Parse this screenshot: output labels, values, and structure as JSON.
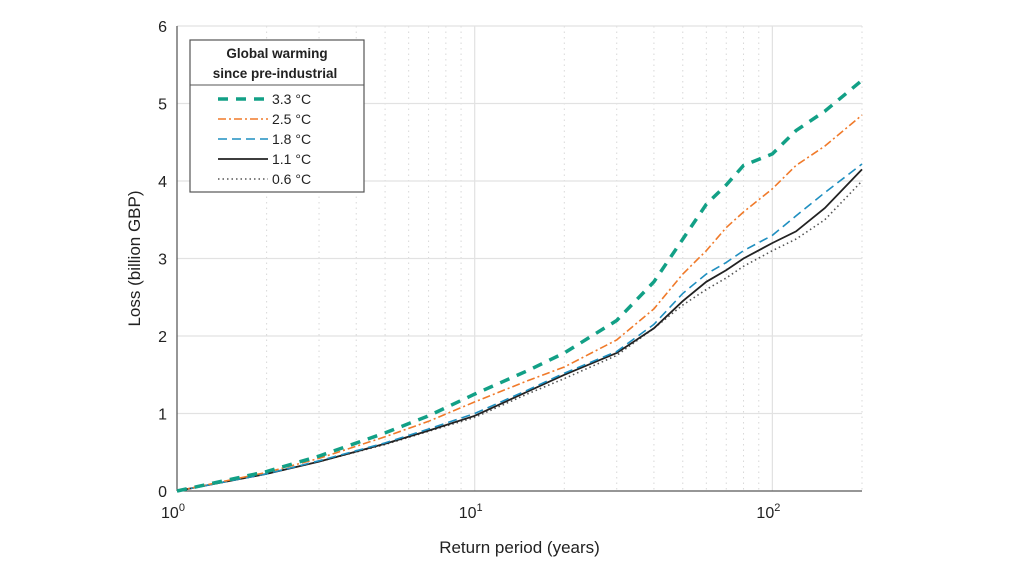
{
  "chart_data": {
    "type": "line",
    "xlabel": "Return period (years)",
    "ylabel": "Loss (billion GBP)",
    "xscale": "log",
    "xlim": [
      1,
      200
    ],
    "ylim": [
      0,
      6
    ],
    "xticks": [
      {
        "v": 1,
        "base": "10",
        "exp": "0"
      },
      {
        "v": 10,
        "base": "10",
        "exp": "1"
      },
      {
        "v": 100,
        "base": "10",
        "exp": "2"
      }
    ],
    "yticks": [
      "0",
      "1",
      "2",
      "3",
      "4",
      "5",
      "6"
    ],
    "grid": true,
    "legend": {
      "title_lines": [
        "Global warming",
        "since pre-industrial"
      ],
      "placement": "top-left"
    },
    "x": [
      1,
      2,
      3,
      5,
      7,
      10,
      15,
      20,
      30,
      40,
      50,
      60,
      70,
      80,
      100,
      120,
      150,
      200
    ],
    "series": [
      {
        "name": "3.3 °C",
        "color": "#12a086",
        "dash": "10,8",
        "width": 3.5,
        "values": [
          0,
          0.25,
          0.45,
          0.75,
          0.97,
          1.25,
          1.55,
          1.78,
          2.2,
          2.7,
          3.25,
          3.7,
          3.95,
          4.2,
          4.35,
          4.65,
          4.9,
          5.3
        ]
      },
      {
        "name": "2.5 °C",
        "color": "#f07a2a",
        "dash": "8,3,2,3",
        "width": 1.6,
        "values": [
          0,
          0.24,
          0.42,
          0.7,
          0.9,
          1.15,
          1.42,
          1.6,
          1.95,
          2.35,
          2.8,
          3.1,
          3.4,
          3.6,
          3.9,
          4.2,
          4.45,
          4.85
        ]
      },
      {
        "name": "1.8 °C",
        "color": "#1f8fc0",
        "dash": "9,5",
        "width": 1.6,
        "values": [
          0,
          0.22,
          0.39,
          0.62,
          0.8,
          1.0,
          1.3,
          1.52,
          1.8,
          2.15,
          2.55,
          2.8,
          2.95,
          3.1,
          3.3,
          3.55,
          3.85,
          4.22
        ]
      },
      {
        "name": "1.1 °C",
        "color": "#222222",
        "dash": "",
        "width": 1.8,
        "values": [
          0,
          0.22,
          0.38,
          0.61,
          0.78,
          0.97,
          1.28,
          1.5,
          1.78,
          2.1,
          2.45,
          2.7,
          2.85,
          3.0,
          3.2,
          3.35,
          3.65,
          4.15
        ]
      },
      {
        "name": "0.6 °C",
        "color": "#555555",
        "dash": "1.5,3",
        "width": 1.6,
        "values": [
          0,
          0.22,
          0.38,
          0.6,
          0.77,
          0.95,
          1.25,
          1.45,
          1.75,
          2.1,
          2.4,
          2.6,
          2.75,
          2.9,
          3.1,
          3.25,
          3.5,
          4.0
        ]
      }
    ]
  }
}
